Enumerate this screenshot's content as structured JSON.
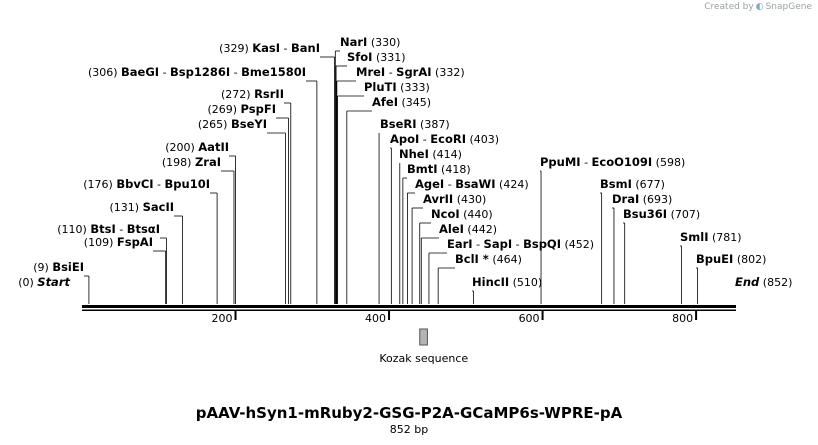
{
  "credit": {
    "prefix": "Created by",
    "brand": "SnapGene",
    "icon": "snapgene-logo-icon"
  },
  "title": "pAAV-hSyn1-mRuby2-GSG-P2A-GCaMP6s-WPRE-pA",
  "length_label": "852 bp",
  "sequence_length": 852,
  "ticks": [
    {
      "pos": 200,
      "label": "200"
    },
    {
      "pos": 400,
      "label": "400"
    },
    {
      "pos": 600,
      "label": "600"
    },
    {
      "pos": 800,
      "label": "800"
    }
  ],
  "feature": {
    "name": "Kozak sequence",
    "start": 440,
    "end": 450,
    "color": "#b4b4b4"
  },
  "sites": [
    {
      "pos": 0,
      "parts": [
        "Start"
      ],
      "pos_label": "(0)",
      "italic": true,
      "label_side": "right"
    },
    {
      "pos": 9,
      "parts": [
        "BsiEI"
      ],
      "pos_label": "(9)",
      "label_side": "right"
    },
    {
      "pos": 109,
      "parts": [
        "FspAI"
      ],
      "pos_label": "(109)",
      "label_side": "right"
    },
    {
      "pos": 110,
      "parts": [
        "BtsI",
        "BtsαI"
      ],
      "pos_label": "(110)",
      "label_side": "right"
    },
    {
      "pos": 131,
      "parts": [
        "SacII"
      ],
      "pos_label": "(131)",
      "label_side": "right"
    },
    {
      "pos": 176,
      "parts": [
        "BbvCI",
        "Bpu10I"
      ],
      "pos_label": "(176)",
      "label_side": "right"
    },
    {
      "pos": 198,
      "parts": [
        "ZraI"
      ],
      "pos_label": "(198)",
      "label_side": "right"
    },
    {
      "pos": 200,
      "parts": [
        "AatII"
      ],
      "pos_label": "(200)",
      "label_side": "right"
    },
    {
      "pos": 265,
      "parts": [
        "BseYI"
      ],
      "pos_label": "(265)",
      "label_side": "right"
    },
    {
      "pos": 269,
      "parts": [
        "PspFI"
      ],
      "pos_label": "(269)",
      "label_side": "right"
    },
    {
      "pos": 272,
      "parts": [
        "RsrII"
      ],
      "pos_label": "(272)",
      "label_side": "right"
    },
    {
      "pos": 306,
      "parts": [
        "BaeGI",
        "Bsp1286I",
        "Bme1580I"
      ],
      "pos_label": "(306)",
      "label_side": "right"
    },
    {
      "pos": 329,
      "parts": [
        "KasI",
        "BanI"
      ],
      "pos_label": "(329)",
      "label_side": "right"
    },
    {
      "pos": 330,
      "parts": [
        "NarI"
      ],
      "pos_label": "(330)",
      "label_side": "left"
    },
    {
      "pos": 331,
      "parts": [
        "SfoI"
      ],
      "pos_label": "(331)",
      "label_side": "left"
    },
    {
      "pos": 332,
      "parts": [
        "MreI",
        "SgrAI"
      ],
      "pos_label": "(332)",
      "label_side": "left"
    },
    {
      "pos": 333,
      "parts": [
        "PluTI"
      ],
      "pos_label": "(333)",
      "label_side": "left"
    },
    {
      "pos": 345,
      "parts": [
        "AfeI"
      ],
      "pos_label": "(345)",
      "label_side": "left"
    },
    {
      "pos": 387,
      "parts": [
        "BseRI"
      ],
      "pos_label": "(387)",
      "label_side": "left"
    },
    {
      "pos": 403,
      "parts": [
        "ApoI",
        "EcoRI"
      ],
      "pos_label": "(403)",
      "label_side": "left"
    },
    {
      "pos": 414,
      "parts": [
        "NheI"
      ],
      "pos_label": "(414)",
      "label_side": "left"
    },
    {
      "pos": 418,
      "parts": [
        "BmtI"
      ],
      "pos_label": "(418)",
      "label_side": "left"
    },
    {
      "pos": 424,
      "parts": [
        "AgeI",
        "BsaWI"
      ],
      "pos_label": "(424)",
      "label_side": "left"
    },
    {
      "pos": 430,
      "parts": [
        "AvrII"
      ],
      "pos_label": "(430)",
      "label_side": "left"
    },
    {
      "pos": 440,
      "parts": [
        "NcoI"
      ],
      "pos_label": "(440)",
      "label_side": "left"
    },
    {
      "pos": 442,
      "parts": [
        "AleI"
      ],
      "pos_label": "(442)",
      "label_side": "left"
    },
    {
      "pos": 452,
      "parts": [
        "EarI",
        "SapI",
        "BspQI"
      ],
      "pos_label": "(452)",
      "label_side": "left"
    },
    {
      "pos": 464,
      "parts": [
        "BclI *"
      ],
      "pos_label": "(464)",
      "label_side": "left"
    },
    {
      "pos": 510,
      "parts": [
        "HincII"
      ],
      "pos_label": "(510)",
      "label_side": "left"
    },
    {
      "pos": 598,
      "parts": [
        "PpuMI",
        "EcoO109I"
      ],
      "pos_label": "(598)",
      "label_side": "left"
    },
    {
      "pos": 677,
      "parts": [
        "BsmI"
      ],
      "pos_label": "(677)",
      "label_side": "left"
    },
    {
      "pos": 693,
      "parts": [
        "DraI"
      ],
      "pos_label": "(693)",
      "label_side": "left"
    },
    {
      "pos": 707,
      "parts": [
        "Bsu36I"
      ],
      "pos_label": "(707)",
      "label_side": "left"
    },
    {
      "pos": 781,
      "parts": [
        "SmlI"
      ],
      "pos_label": "(781)",
      "label_side": "left"
    },
    {
      "pos": 802,
      "parts": [
        "BpuEI"
      ],
      "pos_label": "(802)",
      "label_side": "left"
    },
    {
      "pos": 852,
      "parts": [
        "End"
      ],
      "pos_label": "(852)",
      "italic": true,
      "label_side": "left"
    }
  ]
}
